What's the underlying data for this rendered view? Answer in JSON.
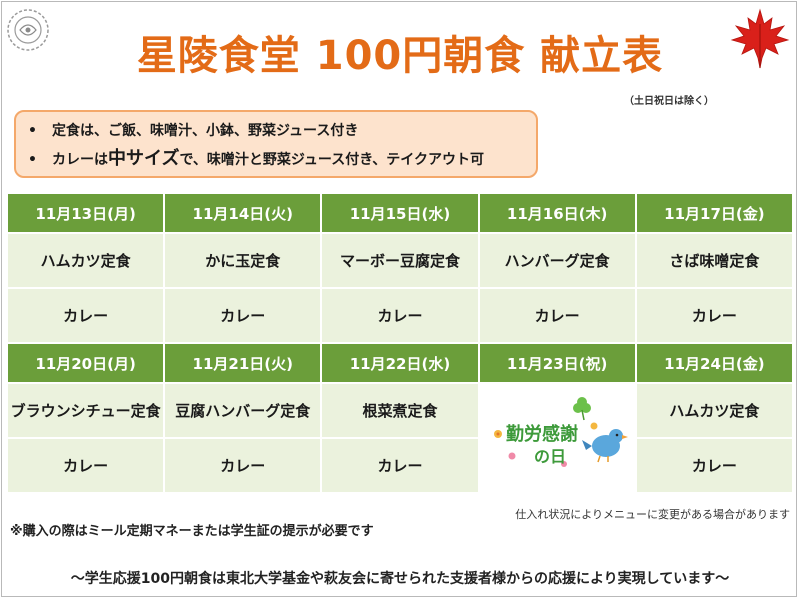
{
  "title": "星陵食堂 100円朝食 献立表",
  "subnote": "（土日祝日は除く）",
  "info": {
    "line1": "定食は、ご飯、味噌汁、小鉢、野菜ジュース付き",
    "line2_a": "カレーは",
    "line2_b": "中サイズ",
    "line2_c": "で、味噌汁と野菜ジュース付き、テイクアウト可"
  },
  "week1": {
    "dates": [
      "11月13日(月)",
      "11月14日(火)",
      "11月15日(水)",
      "11月16日(木)",
      "11月17日(金)"
    ],
    "set_meals": [
      "ハムカツ定食",
      "かに玉定食",
      "マーボー豆腐定食",
      "ハンバーグ定食",
      "さば味噌定食"
    ],
    "curry": [
      "カレー",
      "カレー",
      "カレー",
      "カレー",
      "カレー"
    ]
  },
  "week2": {
    "dates": [
      "11月20日(月)",
      "11月21日(火)",
      "11月22日(水)",
      "11月23日(祝)",
      "11月24日(金)"
    ],
    "set_meals": [
      "ブラウンシチュー定食",
      "豆腐ハンバーグ定食",
      "根菜煮定食",
      "",
      "ハムカツ定食"
    ],
    "curry": [
      "カレー",
      "カレー",
      "カレー",
      "",
      "カレー"
    ]
  },
  "holiday": {
    "line1": "勤労感謝",
    "line2": "の日"
  },
  "notes": {
    "supply": "仕入れ状況によりメニューに変更がある場合があります",
    "purchase": "※購入の際はミール定期マネーまたは学生証の提示が必要です",
    "footer": "～学生応援100円朝食は東北大学基金や萩友会に寄せられた支援者様からの応援により実現しています～"
  },
  "colors": {
    "title": "#e36b17",
    "header_green": "#6b9e3a",
    "cell_green": "#ebf2dd",
    "info_bg": "#fde3cd",
    "info_border": "#f4a86a",
    "leaf_red": "#d9201a",
    "holiday_text": "#3d9a3a"
  },
  "icons": [
    "emblem-icon",
    "maple-leaf-icon",
    "bluebird-icon",
    "flower-icon",
    "clover-icon"
  ]
}
